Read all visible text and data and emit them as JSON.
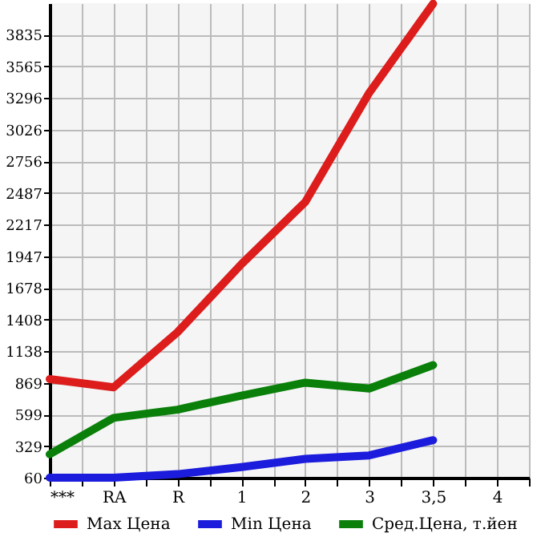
{
  "chart_data": {
    "type": "line",
    "categories": [
      "***",
      "RA",
      "R",
      "1",
      "2",
      "3",
      "3,5",
      "4"
    ],
    "series": [
      {
        "name": "Max Цена",
        "color": "#dd1c1c",
        "values": [
          900,
          830,
          1300,
          1880,
          2410,
          3340,
          4100,
          null
        ]
      },
      {
        "name": "Min Цена",
        "color": "#1c1cdd",
        "values": [
          60,
          60,
          90,
          150,
          220,
          250,
          380,
          null
        ]
      },
      {
        "name": "Сред.Цена, т.йен",
        "color": "#0a800a",
        "values": [
          260,
          570,
          640,
          760,
          870,
          820,
          1020,
          null
        ]
      }
    ],
    "ylim": [
      60,
      4104
    ],
    "yticks": [
      60,
      329,
      599,
      869,
      1138,
      1408,
      1678,
      1947,
      2217,
      2487,
      2756,
      3026,
      3296,
      3565,
      3835
    ],
    "grid": true,
    "legend": "bottom",
    "marker": "none",
    "line_style": "solid"
  }
}
